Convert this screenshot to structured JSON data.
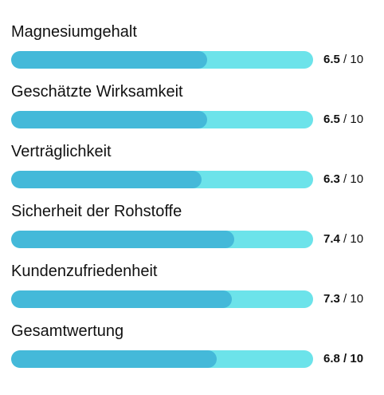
{
  "ratings": [
    {
      "label": "Magnesiumgehalt",
      "value": "6.5",
      "max": "10",
      "fraction": 0.65
    },
    {
      "label": "Geschätzte Wirksamkeit",
      "value": "6.5",
      "max": "10",
      "fraction": 0.65
    },
    {
      "label": "Verträglichkeit",
      "value": "6.3",
      "max": "10",
      "fraction": 0.63
    },
    {
      "label": "Sicherheit der Rohstoffe",
      "value": "7.4",
      "max": "10",
      "fraction": 0.74
    },
    {
      "label": "Kundenzufriedenheit",
      "value": "7.3",
      "max": "10",
      "fraction": 0.73
    },
    {
      "label": "Gesamtwertung",
      "value": "6.8",
      "max": "10",
      "fraction": 0.68
    }
  ],
  "separator": " / ",
  "colors": {
    "track": "#6ce3ea",
    "fill": "#44b9d9",
    "text": "#111111"
  }
}
